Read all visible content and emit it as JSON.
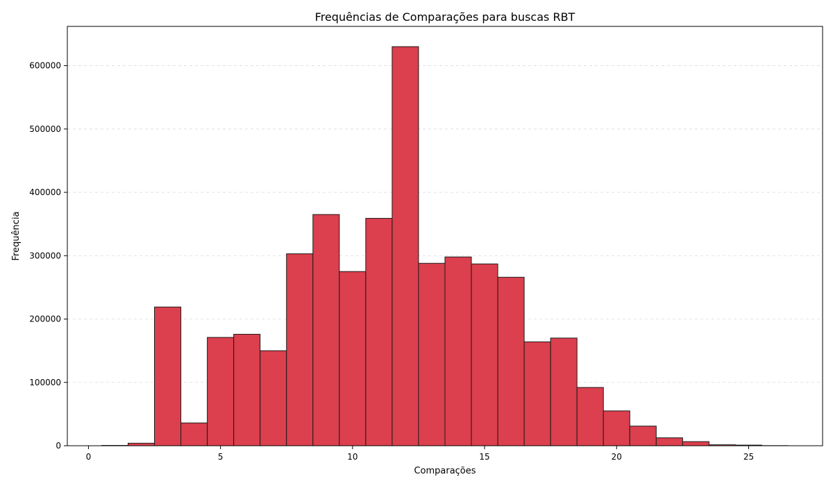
{
  "chart_data": {
    "type": "bar",
    "title": "Frequências de Comparações para buscas RBT",
    "xlabel": "Comparações",
    "ylabel": "Frequência",
    "bar_color": "#dc3f4d",
    "edge_color": "#1a1a1a",
    "grid": true,
    "xlim": [
      -0.8,
      27.8
    ],
    "ylim": [
      0,
      662000
    ],
    "xticks": [
      0,
      5,
      10,
      15,
      20,
      25
    ],
    "yticks": [
      0,
      100000,
      200000,
      300000,
      400000,
      500000,
      600000
    ],
    "x": [
      1,
      2,
      3,
      4,
      5,
      6,
      7,
      8,
      9,
      10,
      11,
      12,
      13,
      14,
      15,
      16,
      17,
      18,
      19,
      20,
      21,
      22,
      23,
      24,
      25,
      26
    ],
    "values": [
      500,
      4000,
      219000,
      36000,
      171000,
      176000,
      150000,
      303000,
      365000,
      275000,
      359000,
      630000,
      288000,
      298000,
      287000,
      266000,
      164000,
      170000,
      92000,
      55000,
      31000,
      12500,
      6500,
      1500,
      1000,
      200
    ]
  }
}
